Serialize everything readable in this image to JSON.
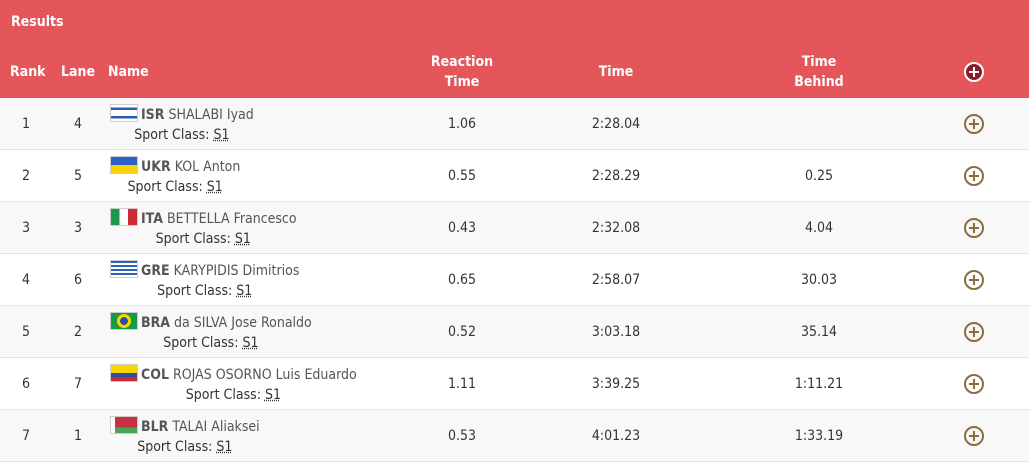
{
  "title": "Results",
  "columns": {
    "rank": "Rank",
    "lane": "Lane",
    "name": "Name",
    "reaction_line1": "Reaction",
    "reaction_line2": "Time",
    "time": "Time",
    "behind_line1": "Time",
    "behind_line2": "Behind",
    "expand_all_icon": "plus-circle-icon"
  },
  "colors": {
    "header": "#e5565b",
    "expand_icon": "#8b6d3f"
  },
  "rows": [
    {
      "rank": "1",
      "lane": "4",
      "code": "ISR",
      "name": "SHALABI Iyad",
      "sport_class_label": "Sport Class:",
      "sport_class": "S1",
      "reaction": "1.06",
      "time": "2:28.04",
      "behind": ""
    },
    {
      "rank": "2",
      "lane": "5",
      "code": "UKR",
      "name": "KOL Anton",
      "sport_class_label": "Sport Class:",
      "sport_class": "S1",
      "reaction": "0.55",
      "time": "2:28.29",
      "behind": "0.25"
    },
    {
      "rank": "3",
      "lane": "3",
      "code": "ITA",
      "name": "BETTELLA Francesco",
      "sport_class_label": "Sport Class:",
      "sport_class": "S1",
      "reaction": "0.43",
      "time": "2:32.08",
      "behind": "4.04"
    },
    {
      "rank": "4",
      "lane": "6",
      "code": "GRE",
      "name": "KARYPIDIS Dimitrios",
      "sport_class_label": "Sport Class:",
      "sport_class": "S1",
      "reaction": "0.65",
      "time": "2:58.07",
      "behind": "30.03"
    },
    {
      "rank": "5",
      "lane": "2",
      "code": "BRA",
      "name": "da SILVA Jose Ronaldo",
      "sport_class_label": "Sport Class:",
      "sport_class": "S1",
      "reaction": "0.52",
      "time": "3:03.18",
      "behind": "35.14"
    },
    {
      "rank": "6",
      "lane": "7",
      "code": "COL",
      "name": "ROJAS OSORNO Luis Eduardo",
      "sport_class_label": "Sport Class:",
      "sport_class": "S1",
      "reaction": "1.11",
      "time": "3:39.25",
      "behind": "1:11.21"
    },
    {
      "rank": "7",
      "lane": "1",
      "code": "BLR",
      "name": "TALAI Aliaksei",
      "sport_class_label": "Sport Class:",
      "sport_class": "S1",
      "reaction": "0.53",
      "time": "4:01.23",
      "behind": "1:33.19"
    }
  ]
}
